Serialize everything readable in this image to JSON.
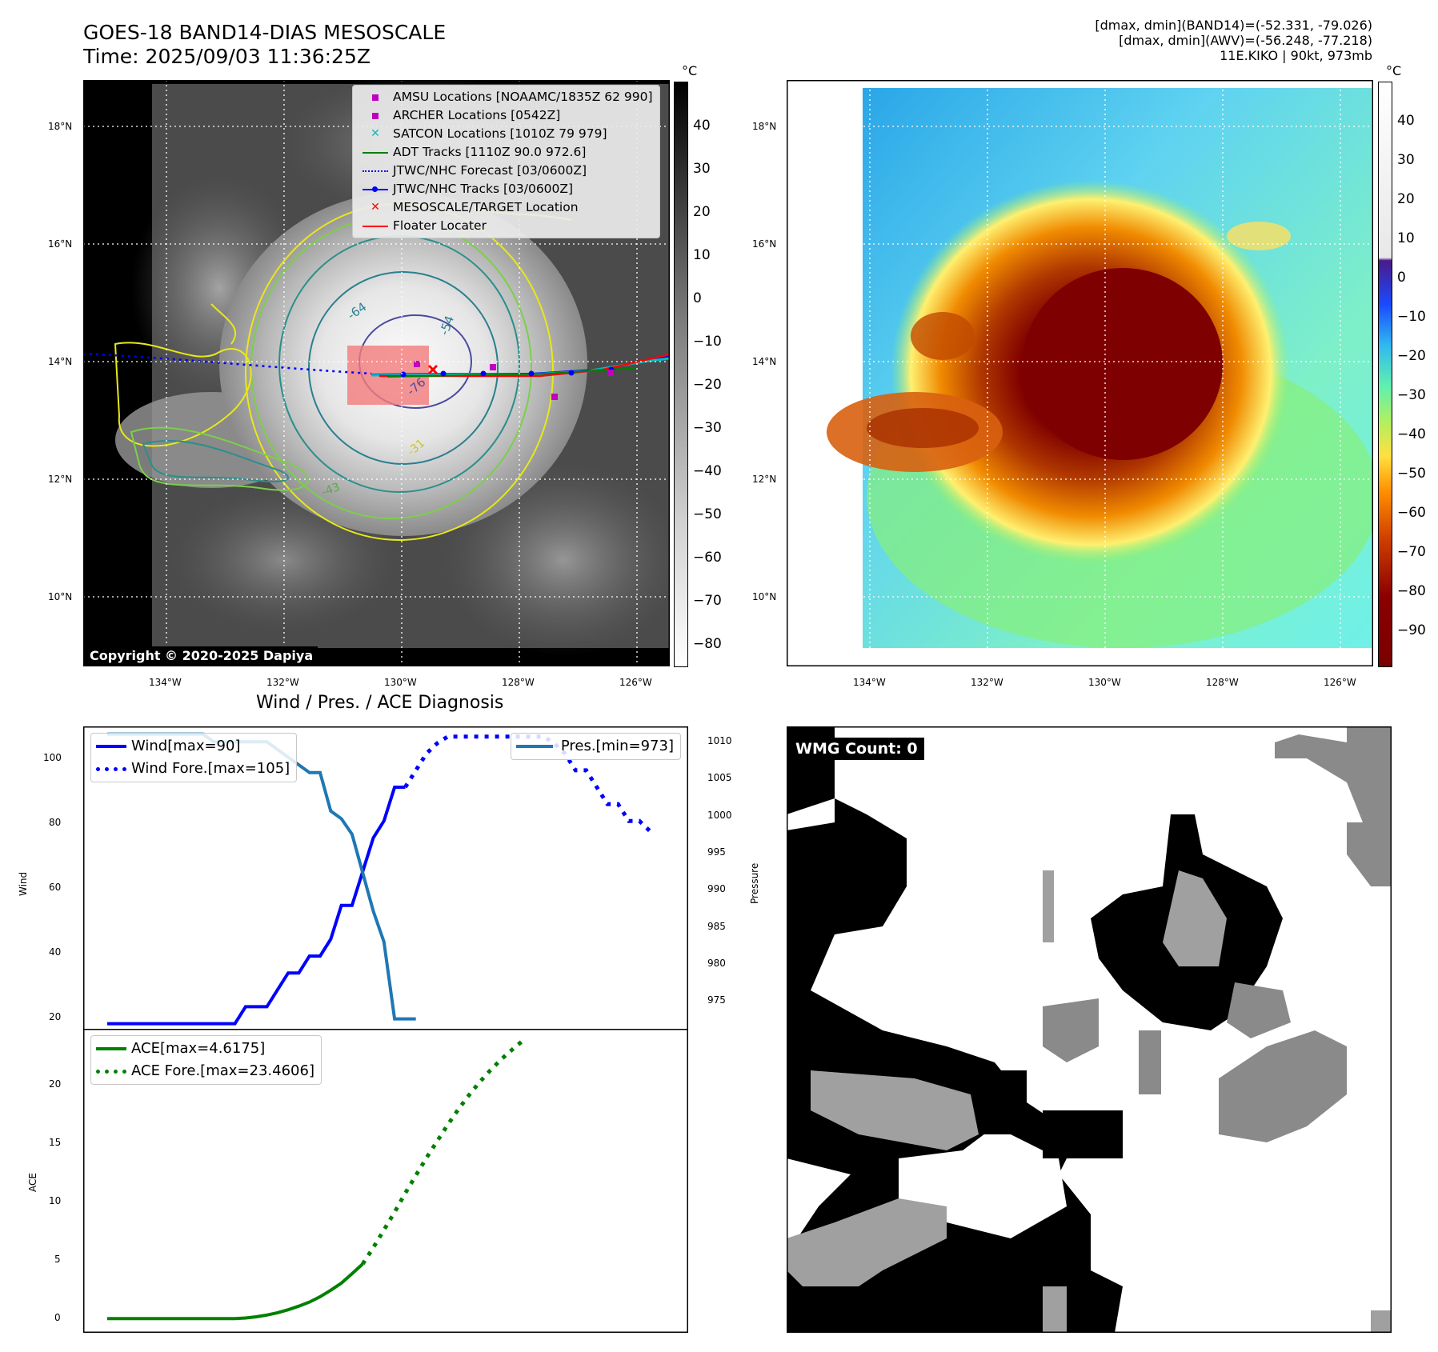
{
  "header": {
    "title_line1": "GOES-18 BAND14-DIAS MESOSCALE",
    "title_line2": "Time: 2025/09/03 11:36:25Z",
    "info_line1": "[dmax, dmin](BAND14)=(-52.331, -79.026)",
    "info_line2": "[dmax, dmin](AWV)=(-56.248, -77.218)",
    "info_line3": "11E.KIKO | 90kt, 973mb"
  },
  "map": {
    "lat_labels": [
      "18°N",
      "16°N",
      "14°N",
      "12°N",
      "10°N"
    ],
    "lon_labels": [
      "134°W",
      "132°W",
      "130°W",
      "128°W",
      "126°W"
    ],
    "copyright": "Copyright © 2020-2025 Dapiya",
    "contour_labels": [
      "-64",
      "-54",
      "-76",
      "-43",
      "-31"
    ],
    "legend": [
      {
        "label": "AMSU Locations [NOAAMC/1835Z 62 990]",
        "symbol": "square",
        "color": "#bf00bf"
      },
      {
        "label": "ARCHER Locations [0542Z]",
        "symbol": "square",
        "color": "#bf00bf"
      },
      {
        "label": "SATCON Locations [1010Z 79 979]",
        "symbol": "x",
        "color": "#00bfbf"
      },
      {
        "label": "ADT Tracks [1110Z 90.0 972.6]",
        "symbol": "line",
        "color": "#008000"
      },
      {
        "label": "JTWC/NHC Forecast [03/0600Z]",
        "symbol": "dotted",
        "color": "#0000ff"
      },
      {
        "label": "JTWC/NHC Tracks [03/0600Z]",
        "symbol": "dotline",
        "color": "#0000ff"
      },
      {
        "label": "MESOSCALE/TARGET Location",
        "symbol": "x",
        "color": "#ff0000"
      },
      {
        "label": "Floater Locater",
        "symbol": "line",
        "color": "#ff0000"
      }
    ]
  },
  "colorbar_gray": {
    "unit": "°C",
    "ticks": [
      "40",
      "30",
      "20",
      "10",
      "0",
      "−10",
      "−20",
      "−30",
      "−40",
      "−50",
      "−60",
      "−70",
      "−80"
    ]
  },
  "colorbar_color": {
    "unit": "°C",
    "ticks": [
      "40",
      "30",
      "20",
      "10",
      "0",
      "−10",
      "−20",
      "−30",
      "−40",
      "−50",
      "−60",
      "−70",
      "−80",
      "−90"
    ]
  },
  "colors": {
    "wind": "#0000ff",
    "pressure": "#1f77b4",
    "ace": "#008000"
  },
  "chart_data": [
    {
      "type": "line",
      "title": "Wind / Pres. / ACE Diagnosis",
      "ylabel": "Wind",
      "ylabel_right": "Pressure",
      "ylim": [
        18,
        108
      ],
      "ylim_right": [
        971.5,
        1011
      ],
      "yticks": [
        "100",
        "80",
        "60",
        "40",
        "20"
      ],
      "yticks_right": [
        "1010",
        "1005",
        "1000",
        "995",
        "990",
        "985",
        "980",
        "975"
      ],
      "legend_left": [
        "Wind[max=90]",
        "Wind Fore.[max=105]"
      ],
      "legend_right": [
        "Pres.[min=973]"
      ],
      "series": [
        {
          "name": "Wind[max=90]",
          "style": "solid",
          "values": [
            20,
            20,
            20,
            20,
            20,
            20,
            20,
            20,
            20,
            20,
            20,
            20,
            20,
            25,
            25,
            25,
            30,
            35,
            35,
            40,
            40,
            45,
            55,
            55,
            65,
            75,
            80,
            90,
            90
          ]
        },
        {
          "name": "Wind Fore.[max=105]",
          "style": "dotted",
          "values": [
            90,
            95,
            100,
            103,
            105,
            105,
            105,
            105,
            105,
            105,
            105,
            105,
            105,
            105,
            103,
            100,
            95,
            95,
            90,
            85,
            85,
            80,
            80,
            77
          ]
        },
        {
          "name": "Pres.[min=973]",
          "style": "solid",
          "axis": "right",
          "values": [
            1010,
            1010,
            1010,
            1010,
            1010,
            1010,
            1010,
            1010,
            1010,
            1010,
            1009,
            1009,
            1009,
            1009,
            1009,
            1009,
            1008,
            1007,
            1006,
            1005,
            1005,
            1000,
            999,
            997,
            992,
            987,
            983,
            973,
            973,
            973
          ]
        }
      ]
    },
    {
      "type": "line",
      "ylabel": "ACE",
      "ylim": [
        -1.2,
        24.5
      ],
      "yticks": [
        "20",
        "15",
        "10",
        "5",
        "0"
      ],
      "legend": [
        "ACE[max=4.6175]",
        "ACE Fore.[max=23.4606]"
      ],
      "series": [
        {
          "name": "ACE[max=4.6175]",
          "style": "solid",
          "values": [
            0,
            0,
            0,
            0,
            0,
            0,
            0,
            0,
            0,
            0,
            0,
            0,
            0,
            0.05,
            0.15,
            0.3,
            0.5,
            0.75,
            1.05,
            1.4,
            1.85,
            2.4,
            3.0,
            3.8,
            4.6175
          ]
        },
        {
          "name": "ACE Fore.[max=23.4606]",
          "style": "dotted",
          "values": [
            4.6175,
            6.0,
            7.5,
            9.0,
            10.6,
            12.1,
            13.6,
            15.0,
            16.4,
            17.7,
            18.9,
            20.0,
            21.0,
            21.9,
            22.7,
            23.4606
          ]
        }
      ]
    }
  ],
  "wmg": {
    "label": "WMG Count: 0"
  }
}
